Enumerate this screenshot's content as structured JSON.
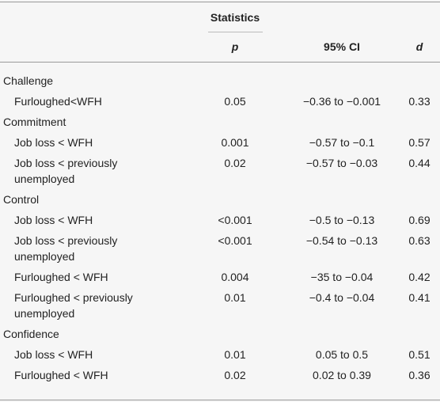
{
  "header": {
    "group": "Statistics",
    "columns": [
      "p",
      "95% CI",
      "d"
    ]
  },
  "table": {
    "sections": [
      {
        "title": "Challenge",
        "rows": [
          [
            "Furloughed<WFH",
            "0.05",
            "−0.36 to −0.001",
            "0.33"
          ]
        ]
      },
      {
        "title": "Commitment",
        "rows": [
          [
            "Job loss < WFH",
            "0.001",
            "−0.57 to −0.1",
            "0.57"
          ],
          [
            "Job loss < previously unemployed",
            "0.02",
            "−0.57 to −0.03",
            "0.44"
          ]
        ]
      },
      {
        "title": "Control",
        "rows": [
          [
            "Job loss < WFH",
            "<0.001",
            "−0.5 to −0.13",
            "0.69"
          ],
          [
            "Job loss < previously unemployed",
            "<0.001",
            "−0.54 to −0.13",
            "0.63"
          ],
          [
            "Furloughed < WFH",
            "0.004",
            "−35 to −0.04",
            "0.42"
          ],
          [
            "Furloughed < previously unemployed",
            "0.01",
            "−0.4 to −0.04",
            "0.41"
          ]
        ]
      },
      {
        "title": "Confidence",
        "rows": [
          [
            "Job loss < WFH",
            "0.01",
            "0.05 to 0.5",
            "0.51"
          ],
          [
            "Furloughed < WFH",
            "0.02",
            "0.02 to 0.39",
            "0.36"
          ]
        ]
      }
    ]
  }
}
